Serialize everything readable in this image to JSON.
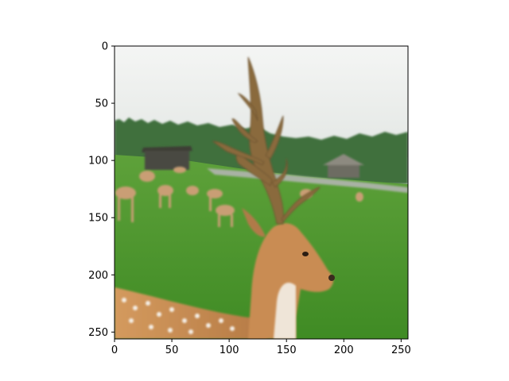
{
  "image": {
    "subject": "fallow-deer-stag-with-herd",
    "colors": {
      "sky": "#eef0ef",
      "treeline": "#3f6f3e",
      "grass": "#4f9a2e",
      "grass_dark": "#3e8a25",
      "path": "#a9b2a4",
      "deer_fur": "#c98c52",
      "deer_light": "#efe5d8",
      "antler": "#8a6a3c",
      "shed": "#4a4a42",
      "spots": "#f5efe6"
    }
  },
  "axes": {
    "xlim": [
      0,
      256
    ],
    "ylim": [
      256,
      0
    ],
    "x_ticks": [
      {
        "value": 0,
        "label": "0"
      },
      {
        "value": 50,
        "label": "50"
      },
      {
        "value": 100,
        "label": "100"
      },
      {
        "value": 150,
        "label": "150"
      },
      {
        "value": 200,
        "label": "200"
      },
      {
        "value": 250,
        "label": "250"
      }
    ],
    "y_ticks": [
      {
        "value": 0,
        "label": "0"
      },
      {
        "value": 50,
        "label": "50"
      },
      {
        "value": 100,
        "label": "100"
      },
      {
        "value": 150,
        "label": "150"
      },
      {
        "value": 200,
        "label": "200"
      },
      {
        "value": 250,
        "label": "250"
      }
    ]
  }
}
